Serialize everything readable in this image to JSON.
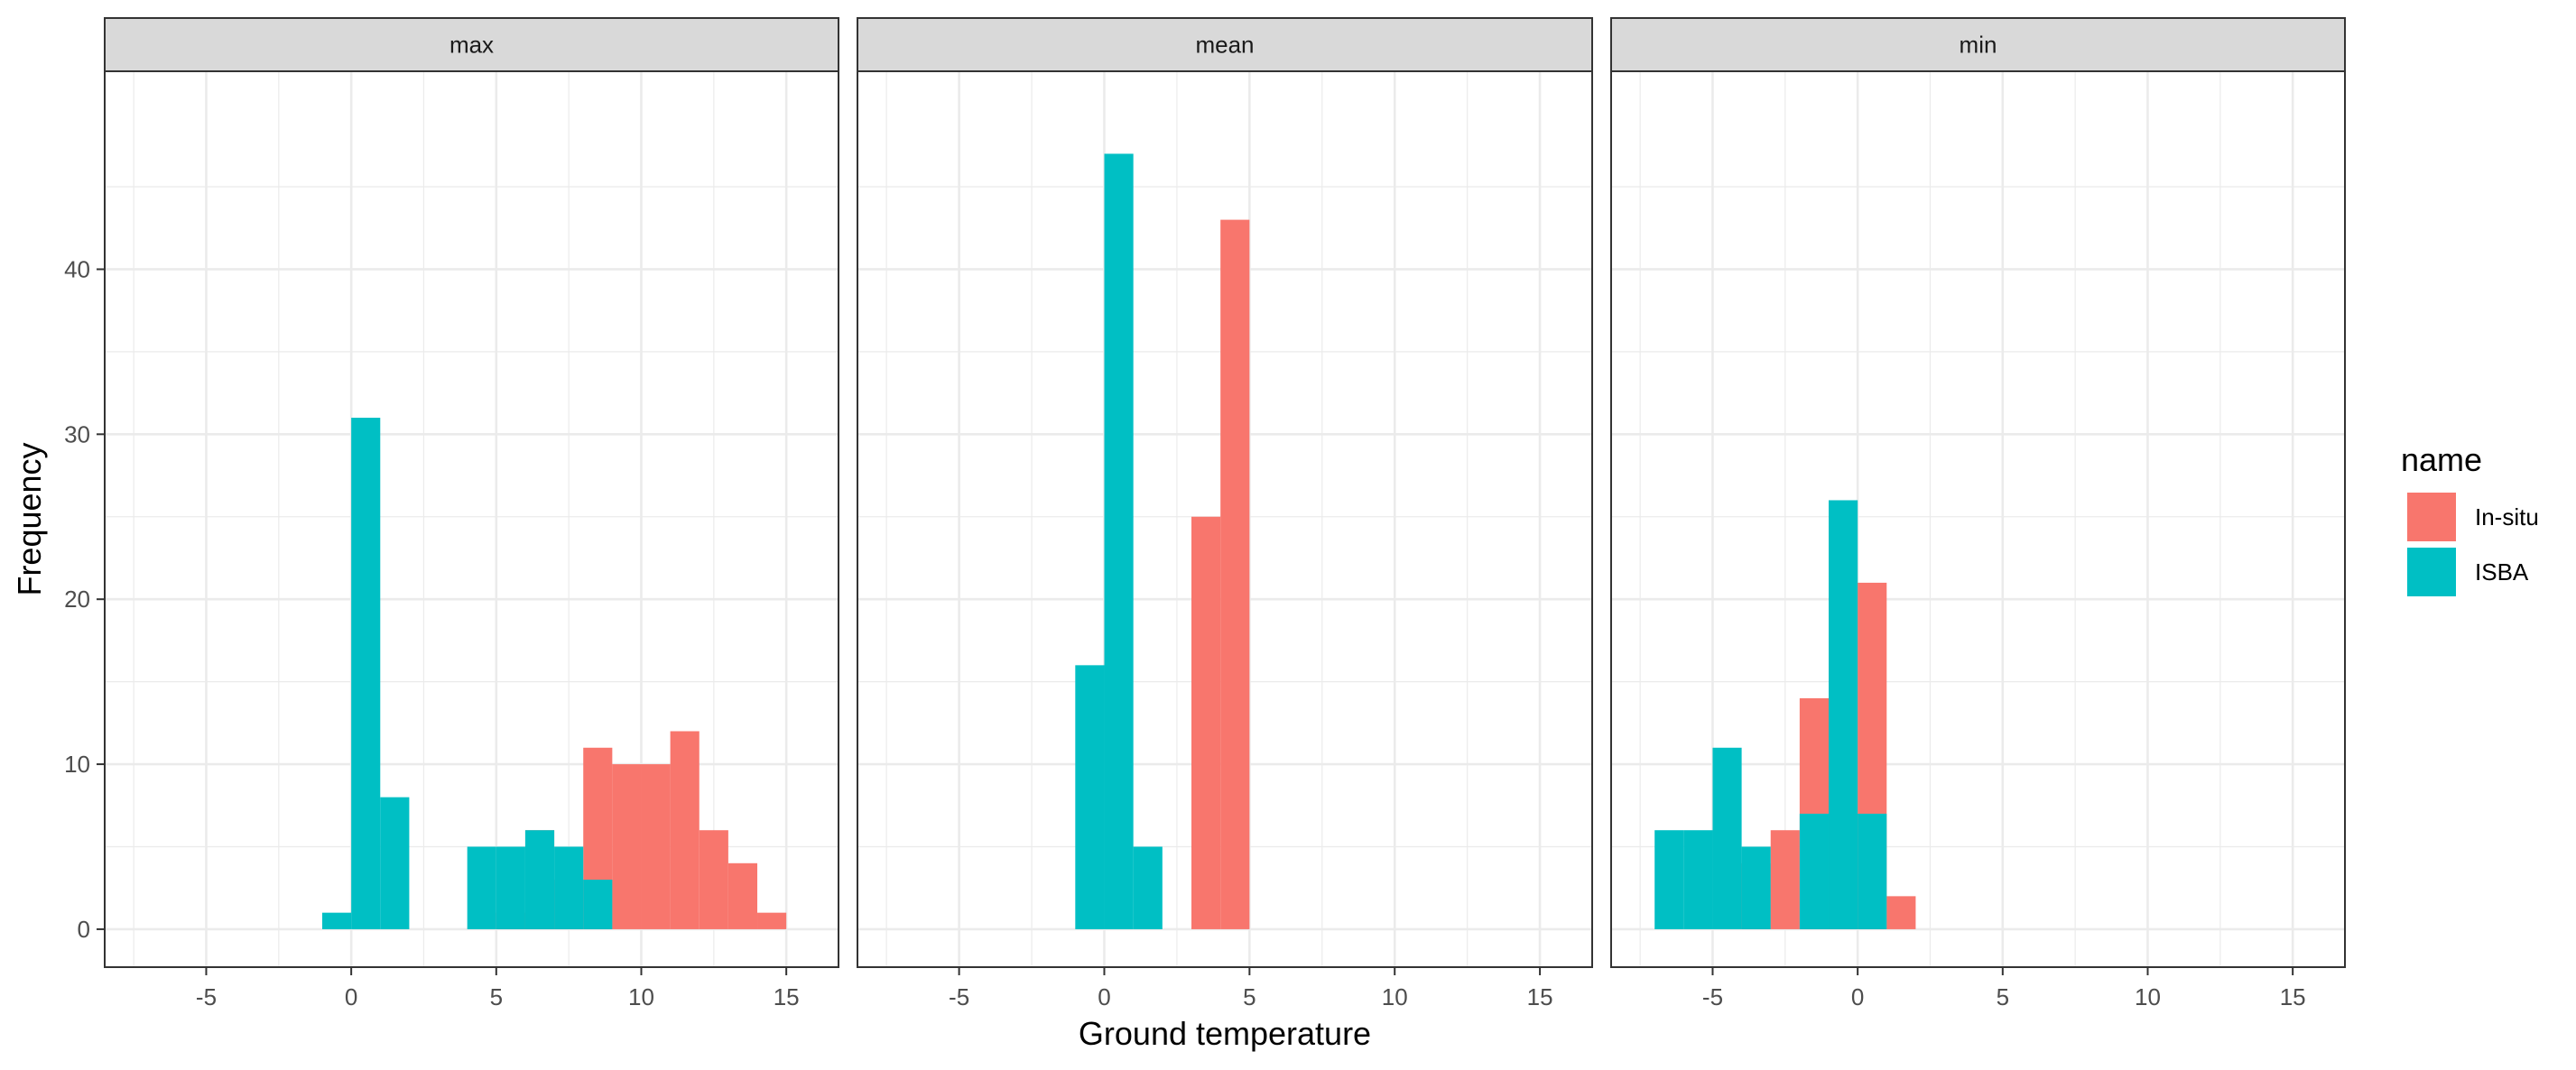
{
  "chart_data": {
    "type": "bar",
    "xlabel": "Ground temperature",
    "ylabel": "Frequency",
    "xlim": [
      -8.5,
      16.8
    ],
    "ylim": [
      -2.3,
      52.0
    ],
    "x_ticks": [
      -5,
      0,
      5,
      10,
      15
    ],
    "y_ticks": [
      0,
      10,
      20,
      30,
      40
    ],
    "grid": true,
    "legend": {
      "title": "name",
      "placement": "right",
      "entries": [
        {
          "name": "In-situ",
          "color": "#F8766D"
        },
        {
          "name": "ISBA",
          "color": "#00BFC4"
        }
      ]
    },
    "bar_width": 1.0,
    "panels": [
      {
        "strip": "max",
        "series": [
          {
            "name": "In-situ",
            "color": "#F8766D",
            "points": [
              {
                "x": 5.5,
                "y": 1
              },
              {
                "x": 6.5,
                "y": 6
              },
              {
                "x": 7.5,
                "y": 3
              },
              {
                "x": 8.5,
                "y": 11
              },
              {
                "x": 9.5,
                "y": 10
              },
              {
                "x": 10.5,
                "y": 10
              },
              {
                "x": 11.5,
                "y": 12
              },
              {
                "x": 12.5,
                "y": 6
              },
              {
                "x": 13.5,
                "y": 4
              },
              {
                "x": 14.5,
                "y": 1
              }
            ]
          },
          {
            "name": "ISBA",
            "color": "#00BFC4",
            "points": [
              {
                "x": -0.5,
                "y": 1
              },
              {
                "x": 0.5,
                "y": 31
              },
              {
                "x": 1.5,
                "y": 8
              },
              {
                "x": 4.5,
                "y": 5
              },
              {
                "x": 5.5,
                "y": 5
              },
              {
                "x": 6.5,
                "y": 6
              },
              {
                "x": 7.5,
                "y": 5
              },
              {
                "x": 8.5,
                "y": 3
              }
            ]
          }
        ]
      },
      {
        "strip": "mean",
        "series": [
          {
            "name": "In-situ",
            "color": "#F8766D",
            "points": [
              {
                "x": 3.5,
                "y": 25
              },
              {
                "x": 4.5,
                "y": 43
              }
            ]
          },
          {
            "name": "ISBA",
            "color": "#00BFC4",
            "points": [
              {
                "x": -0.5,
                "y": 16
              },
              {
                "x": 0.5,
                "y": 47
              },
              {
                "x": 1.5,
                "y": 5
              }
            ]
          }
        ]
      },
      {
        "strip": "min",
        "series": [
          {
            "name": "In-situ",
            "color": "#F8766D",
            "points": [
              {
                "x": -3.5,
                "y": 4
              },
              {
                "x": -2.5,
                "y": 6
              },
              {
                "x": -1.5,
                "y": 14
              },
              {
                "x": -0.5,
                "y": 21
              },
              {
                "x": 0.5,
                "y": 21
              },
              {
                "x": 1.5,
                "y": 2
              }
            ]
          },
          {
            "name": "ISBA",
            "color": "#00BFC4",
            "points": [
              {
                "x": -6.5,
                "y": 6
              },
              {
                "x": -5.5,
                "y": 6
              },
              {
                "x": -4.5,
                "y": 11
              },
              {
                "x": -3.5,
                "y": 5
              },
              {
                "x": -1.5,
                "y": 7
              },
              {
                "x": -0.5,
                "y": 26
              },
              {
                "x": 0.5,
                "y": 7
              }
            ]
          }
        ]
      }
    ]
  }
}
